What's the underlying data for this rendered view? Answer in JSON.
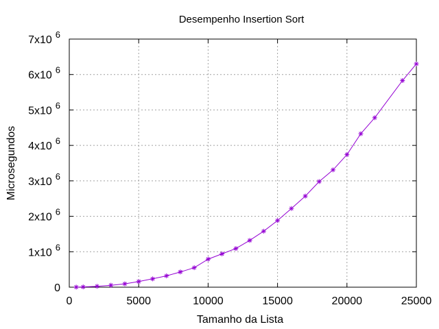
{
  "chart_data": {
    "type": "line",
    "title": "Desempenho Insertion Sort",
    "xlabel": "Tamanho da Lista",
    "ylabel": "Microsegundos",
    "xlim": [
      0,
      25000
    ],
    "ylim": [
      0,
      7000000
    ],
    "x_ticks": [
      0,
      5000,
      10000,
      15000,
      20000,
      25000
    ],
    "x_tick_labels": [
      "0",
      "5000",
      "10000",
      "15000",
      "20000",
      "25000"
    ],
    "y_ticks": [
      0,
      1000000,
      2000000,
      3000000,
      4000000,
      5000000,
      6000000,
      7000000
    ],
    "y_tick_labels": [
      {
        "base": "0",
        "exp": ""
      },
      {
        "base": "1x10",
        "exp": "6"
      },
      {
        "base": "2x10",
        "exp": "6"
      },
      {
        "base": "3x10",
        "exp": "6"
      },
      {
        "base": "4x10",
        "exp": "6"
      },
      {
        "base": "5x10",
        "exp": "6"
      },
      {
        "base": "6x10",
        "exp": "6"
      },
      {
        "base": "7x10",
        "exp": "6"
      }
    ],
    "grid": true,
    "marker": "asterisk",
    "series": [
      {
        "color": "#9400d3",
        "points": [
          [
            500,
            2000
          ],
          [
            1000,
            8000
          ],
          [
            2000,
            25000
          ],
          [
            3000,
            55000
          ],
          [
            4000,
            95000
          ],
          [
            5000,
            160000
          ],
          [
            6000,
            235000
          ],
          [
            7000,
            320000
          ],
          [
            8000,
            430000
          ],
          [
            9000,
            550000
          ],
          [
            10000,
            790000
          ],
          [
            11000,
            940000
          ],
          [
            12000,
            1090000
          ],
          [
            13000,
            1320000
          ],
          [
            14000,
            1580000
          ],
          [
            15000,
            1880000
          ],
          [
            16000,
            2220000
          ],
          [
            17000,
            2570000
          ],
          [
            18000,
            2980000
          ],
          [
            19000,
            3310000
          ],
          [
            20000,
            3740000
          ],
          [
            21000,
            4330000
          ],
          [
            22000,
            4780000
          ],
          [
            24000,
            5830000
          ],
          [
            25000,
            6300000
          ]
        ]
      }
    ]
  }
}
